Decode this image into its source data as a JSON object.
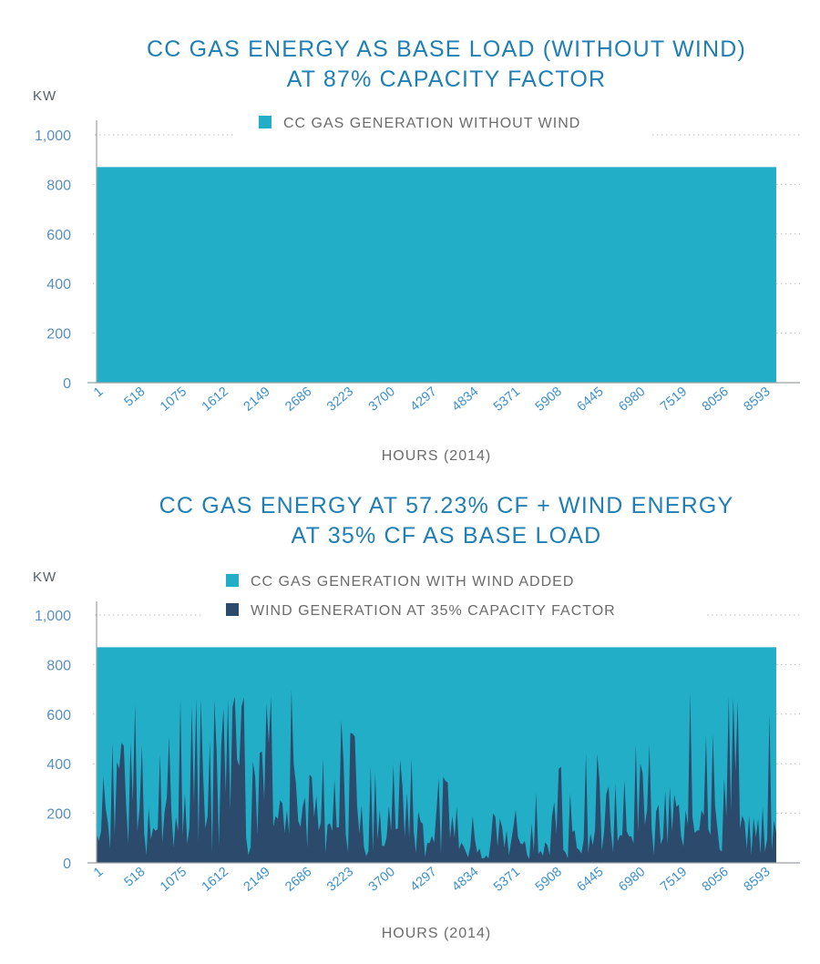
{
  "colors": {
    "gas": "#23aec8",
    "wind": "#2c4a6b",
    "title": "#1f7fb5",
    "axis": "#9aa0a6"
  },
  "chart_data": [
    {
      "type": "area",
      "title_lines": [
        "CC GAS ENERGY AS BASE LOAD (WITHOUT WIND)",
        "AT 87% CAPACITY FACTOR"
      ],
      "ylabel": "KW",
      "xlabel": "HOURS (2014)",
      "ylim": [
        0,
        1000
      ],
      "yticks": [
        0,
        200,
        400,
        600,
        800,
        1000
      ],
      "ytick_labels": [
        "0",
        "200",
        "400",
        "600",
        "800",
        "1,000"
      ],
      "xlim": [
        1,
        8760
      ],
      "xtick_labels": [
        "1",
        "518",
        "1075",
        "1612",
        "2149",
        "2686",
        "3223",
        "3700",
        "4297",
        "4834",
        "5371",
        "5908",
        "6445",
        "6980",
        "7519",
        "8056",
        "8593"
      ],
      "grid": "dotted horizontal",
      "legend_position": "top-center",
      "series": [
        {
          "name": "CC GAS GENERATION WITHOUT WIND",
          "color": "#23aec8",
          "constant_value": 870
        }
      ]
    },
    {
      "type": "area",
      "title_lines": [
        "CC GAS ENERGY AT 57.23% CF + WIND ENERGY",
        "AT 35% CF AS BASE LOAD"
      ],
      "ylabel": "KW",
      "xlabel": "HOURS (2014)",
      "ylim": [
        0,
        1000
      ],
      "yticks": [
        0,
        200,
        400,
        600,
        800,
        1000
      ],
      "ytick_labels": [
        "0",
        "200",
        "400",
        "600",
        "800",
        "1,000"
      ],
      "xlim": [
        1,
        8760
      ],
      "xtick_labels": [
        "1",
        "518",
        "1075",
        "1612",
        "2149",
        "2686",
        "3223",
        "3700",
        "4297",
        "4834",
        "5371",
        "5908",
        "6445",
        "6980",
        "7519",
        "8056",
        "8593"
      ],
      "grid": "dotted horizontal",
      "legend_position": "top-center",
      "series": [
        {
          "name": "CC GAS GENERATION WITH WIND ADDED",
          "color": "#23aec8",
          "constant_value": 870
        },
        {
          "name": "WIND GENERATION AT 35% CAPACITY FACTOR",
          "color": "#2c4a6b",
          "peak_envelope": {
            "x": [
              1,
              300,
              600,
              900,
              1200,
              1500,
              1800,
              2100,
              2400,
              2700,
              3000,
              3300,
              3600,
              3900,
              4200,
              4500,
              4800,
              5100,
              5400,
              5700,
              6000,
              6300,
              6600,
              6900,
              7200,
              7500,
              7800,
              8100,
              8400,
              8760
            ],
            "y": [
              680,
              710,
              700,
              690,
              700,
              690,
              680,
              690,
              690,
              720,
              640,
              560,
              360,
              460,
              420,
              350,
              330,
              300,
              290,
              310,
              420,
              480,
              430,
              480,
              720,
              710,
              700,
              690,
              700,
              600
            ]
          }
        }
      ]
    }
  ]
}
